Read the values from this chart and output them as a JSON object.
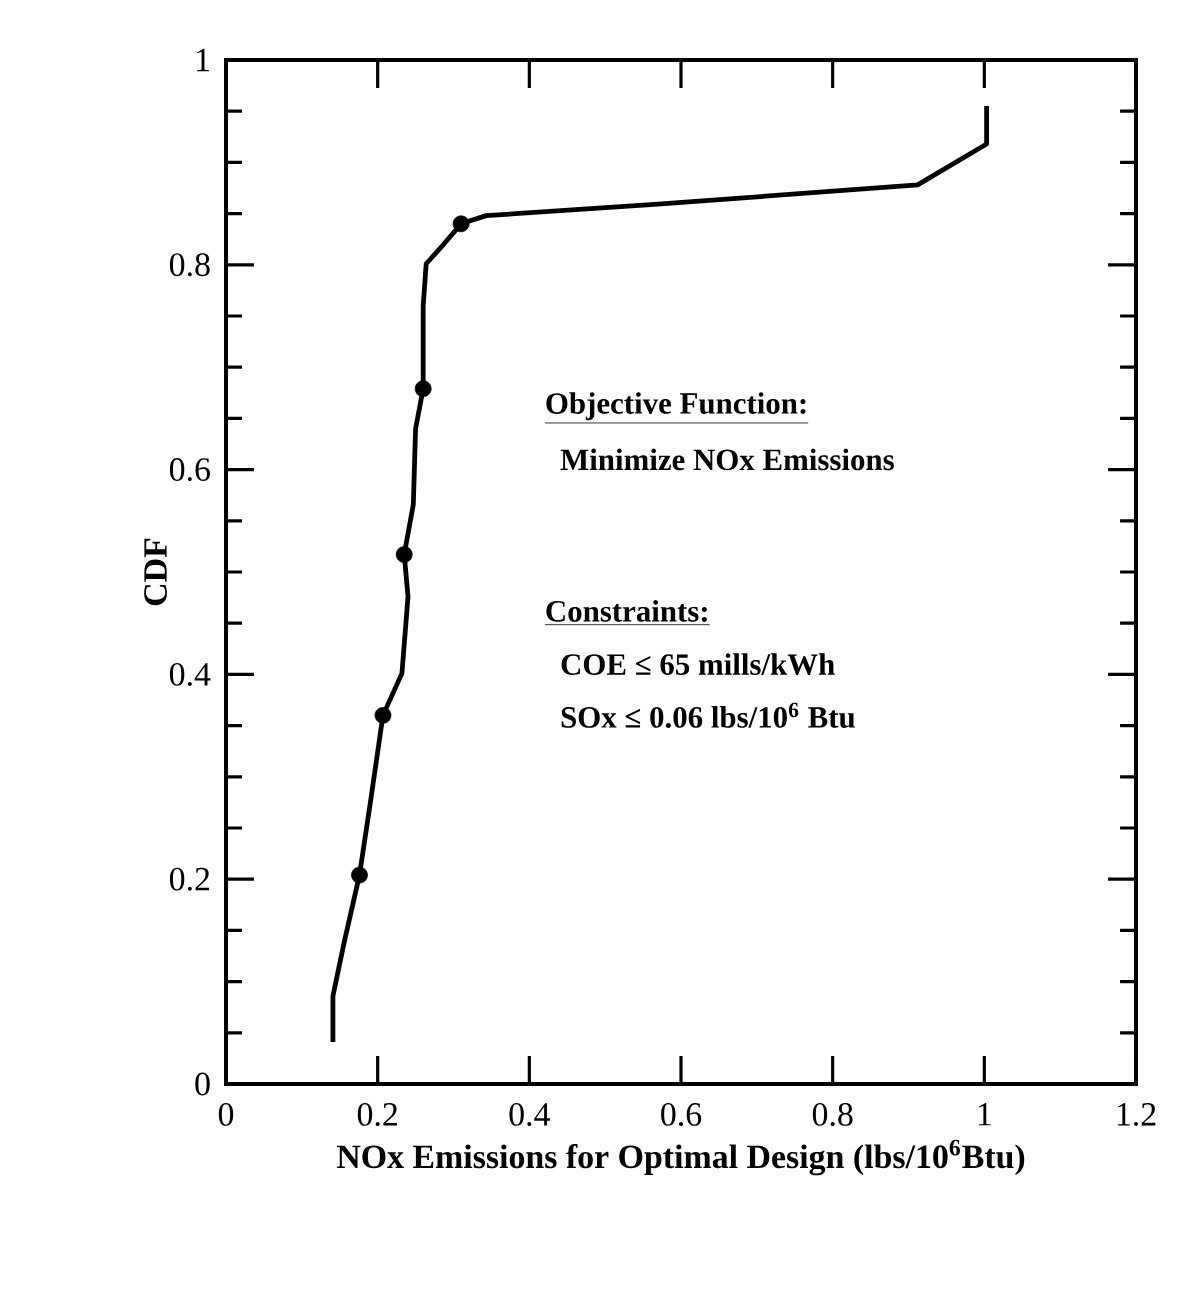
{
  "chart_data": {
    "type": "line",
    "xlabel": "NOx Emissions for Optimal Design (lbs/10$^{6}$Btu)",
    "ylabel": "CDF",
    "xlim": [
      0,
      1.2
    ],
    "ylim": [
      0,
      1
    ],
    "xticks": [
      0,
      0.2,
      0.4,
      0.6,
      0.8,
      1,
      1.2
    ],
    "yticks": [
      0,
      0.2,
      0.4,
      0.6,
      0.8,
      1
    ],
    "grid": false,
    "series": [
      {
        "color": "#000000",
        "marker": "none",
        "x": [
          0.141,
          0.141,
          0.156,
          0.176,
          0.19,
          0.207,
          0.232,
          0.24,
          0.235,
          0.247,
          0.25,
          0.26,
          0.26,
          0.264,
          0.287,
          0.31,
          0.343,
          0.565,
          0.912,
          1.003,
          1.003
        ],
        "values": [
          0.041,
          0.086,
          0.139,
          0.204,
          0.273,
          0.36,
          0.401,
          0.476,
          0.517,
          0.566,
          0.64,
          0.679,
          0.76,
          0.801,
          0.82,
          0.84,
          0.848,
          0.859,
          0.878,
          0.918,
          0.955
        ]
      },
      {
        "type": "scatter",
        "color": "#000000",
        "marker": "circle",
        "x": [
          0.176,
          0.207,
          0.235,
          0.26,
          0.31
        ],
        "values": [
          0.204,
          0.36,
          0.517,
          0.679,
          0.84
        ]
      }
    ],
    "annotations": [
      "Objective Function:",
      "Minimize NOx Emissions",
      "Constraints:",
      "COE ≤ 65 mills/kWh",
      "SOx ≤ 0.06 lbs/10$^{6}$ Btu"
    ]
  }
}
